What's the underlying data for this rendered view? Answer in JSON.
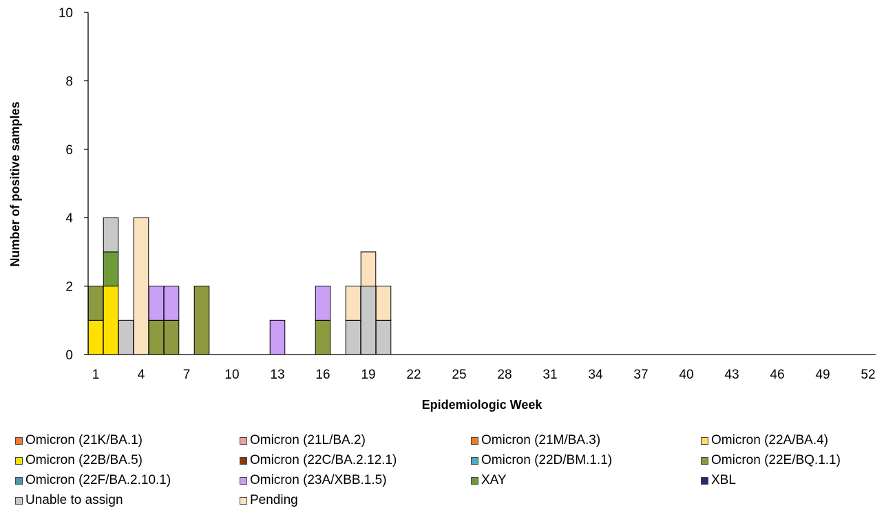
{
  "chart_data": {
    "type": "bar",
    "stacked": true,
    "xlabel": "Epidemiologic Week",
    "ylabel": "Number of positive samples",
    "ylim": [
      0,
      10
    ],
    "yticks": [
      0,
      2,
      4,
      6,
      8,
      10
    ],
    "xlim": [
      1,
      52
    ],
    "xticks": [
      1,
      4,
      7,
      10,
      13,
      16,
      19,
      22,
      25,
      28,
      31,
      34,
      37,
      40,
      43,
      46,
      49,
      52
    ],
    "categories": [
      1,
      2,
      3,
      4,
      5,
      6,
      8,
      13,
      16,
      18,
      19,
      20
    ],
    "series": [
      {
        "name": "Omicron (21K/BA.1)",
        "color": "#ED7D31",
        "values": [
          0,
          0,
          0,
          0,
          0,
          0,
          0,
          0,
          0,
          0,
          0,
          0
        ]
      },
      {
        "name": "Omicron (21L/BA.2)",
        "color": "#E6A3A0",
        "values": [
          0,
          0,
          0,
          0,
          0,
          0,
          0,
          0,
          0,
          0,
          0,
          0
        ]
      },
      {
        "name": "Omicron (21M/BA.3)",
        "color": "#F07A1E",
        "values": [
          0,
          0,
          0,
          0,
          0,
          0,
          0,
          0,
          0,
          0,
          0,
          0
        ]
      },
      {
        "name": "Omicron (22A/BA.4)",
        "color": "#FFD966",
        "values": [
          0,
          0,
          0,
          0,
          0,
          0,
          0,
          0,
          0,
          0,
          0,
          0
        ]
      },
      {
        "name": "Omicron (22B/BA.5)",
        "color": "#FFE000",
        "values": [
          1,
          2,
          0,
          0,
          0,
          0,
          0,
          0,
          0,
          0,
          0,
          0
        ]
      },
      {
        "name": "Omicron (22C/BA.2.12.1)",
        "color": "#8B3A0E",
        "values": [
          0,
          0,
          0,
          0,
          0,
          0,
          0,
          0,
          0,
          0,
          0,
          0
        ]
      },
      {
        "name": "Omicron (22D/BM.1.1)",
        "color": "#4BACC6",
        "values": [
          0,
          0,
          0,
          0,
          0,
          0,
          0,
          0,
          0,
          0,
          0,
          0
        ]
      },
      {
        "name": "Omicron (22E/BQ.1.1)",
        "color": "#8E9A3F",
        "values": [
          1,
          0,
          0,
          0,
          1,
          1,
          2,
          0,
          1,
          0,
          0,
          0
        ]
      },
      {
        "name": "Omicron (22F/BA.2.10.1)",
        "color": "#4A9AB0",
        "values": [
          0,
          0,
          0,
          0,
          0,
          0,
          0,
          0,
          0,
          0,
          0,
          0
        ]
      },
      {
        "name": "Omicron (23A/XBB.1.5)",
        "color": "#C9A0F5",
        "values": [
          0,
          0,
          0,
          0,
          1,
          1,
          0,
          1,
          1,
          0,
          0,
          0
        ]
      },
      {
        "name": "XAY",
        "color": "#6E9A3A",
        "values": [
          0,
          1,
          0,
          0,
          0,
          0,
          0,
          0,
          0,
          0,
          0,
          0
        ]
      },
      {
        "name": "XBL",
        "color": "#1F2D6E",
        "values": [
          0,
          0,
          0,
          0,
          0,
          0,
          0,
          0,
          0,
          0,
          0,
          0
        ]
      },
      {
        "name": "Unable to assign",
        "color": "#C8C8C8",
        "values": [
          0,
          1,
          1,
          0,
          0,
          0,
          0,
          0,
          0,
          1,
          2,
          1
        ]
      },
      {
        "name": "Pending",
        "color": "#FBE1BE",
        "values": [
          0,
          0,
          0,
          4,
          0,
          0,
          0,
          0,
          0,
          1,
          1,
          1
        ]
      }
    ],
    "legend_position": "bottom"
  }
}
